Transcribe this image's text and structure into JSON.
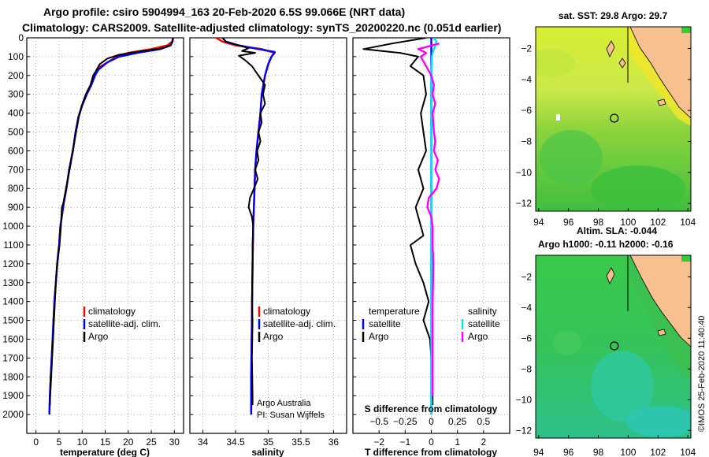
{
  "header": {
    "line1": "Argo profile: csiro 5904994_163 20-Feb-2020 6.5S 99.066E (NRT data)",
    "line2": "Climatology: CARS2009. Satellite-adjusted climatology: synTS_20200220.nc (0.051d earlier)"
  },
  "colors": {
    "climatology": "#ff0000",
    "satellite": "#0000ff",
    "argo": "#000000",
    "sat_salinity": "#00e5e5",
    "argo_salinity": "#ff00ff",
    "land": "#f9c08f"
  },
  "chart_data": [
    {
      "type": "line",
      "id": "temperature",
      "xlabel": "temperature (deg C)",
      "xlim": [
        -2,
        32
      ],
      "xticks": [
        0,
        5,
        10,
        15,
        20,
        25,
        30
      ],
      "ylim": [
        0,
        2100
      ],
      "yticks": [
        0,
        100,
        200,
        300,
        400,
        500,
        600,
        700,
        800,
        900,
        1000,
        1100,
        1200,
        1300,
        1400,
        1500,
        1600,
        1700,
        1800,
        1900,
        2000
      ],
      "legend": [
        "climatology",
        "satellite-adj. clim.",
        "Argo"
      ],
      "series": [
        {
          "name": "climatology",
          "color": "#ff0000",
          "points": [
            [
              29.8,
              0
            ],
            [
              29.5,
              20
            ],
            [
              28.5,
              40
            ],
            [
              25,
              60
            ],
            [
              20,
              80
            ],
            [
              17.5,
              100
            ],
            [
              15.5,
              130
            ],
            [
              13.5,
              160
            ],
            [
              12.8,
              200
            ],
            [
              12,
              250
            ],
            [
              11,
              300
            ],
            [
              10,
              360
            ],
            [
              9.2,
              420
            ],
            [
              8.6,
              500
            ],
            [
              8,
              600
            ],
            [
              7.2,
              700
            ],
            [
              6.6,
              800
            ],
            [
              6,
              880
            ],
            [
              5.3,
              1000
            ],
            [
              5,
              1100
            ],
            [
              4.6,
              1200
            ],
            [
              4.3,
              1300
            ],
            [
              4,
              1400
            ],
            [
              3.8,
              1500
            ],
            [
              3.6,
              1600
            ],
            [
              3.4,
              1700
            ],
            [
              3.2,
              1800
            ],
            [
              3,
              1900
            ],
            [
              2.9,
              2000
            ]
          ]
        },
        {
          "name": "satellite-adj. clim.",
          "color": "#0000ff",
          "points": [
            [
              29.7,
              0
            ],
            [
              29.6,
              20
            ],
            [
              29.2,
              40
            ],
            [
              27,
              60
            ],
            [
              22,
              80
            ],
            [
              18,
              100
            ],
            [
              15.5,
              130
            ],
            [
              13.5,
              170
            ],
            [
              12.8,
              200
            ],
            [
              12,
              250
            ],
            [
              11,
              300
            ],
            [
              10,
              360
            ],
            [
              9.2,
              420
            ],
            [
              8.6,
              500
            ],
            [
              8,
              600
            ],
            [
              7.2,
              700
            ],
            [
              6.6,
              800
            ],
            [
              6,
              880
            ],
            [
              5.3,
              1000
            ],
            [
              5,
              1100
            ],
            [
              4.6,
              1200
            ],
            [
              4.3,
              1300
            ],
            [
              4,
              1400
            ],
            [
              3.8,
              1500
            ],
            [
              3.6,
              1600
            ],
            [
              3.4,
              1700
            ],
            [
              3.2,
              1800
            ],
            [
              3,
              1900
            ],
            [
              2.9,
              2000
            ]
          ]
        },
        {
          "name": "Argo",
          "color": "#000000",
          "points": [
            [
              29.7,
              0
            ],
            [
              29.6,
              20
            ],
            [
              29.2,
              40
            ],
            [
              27.5,
              55
            ],
            [
              23,
              70
            ],
            [
              18,
              90
            ],
            [
              15.5,
              110
            ],
            [
              13.8,
              140
            ],
            [
              12.9,
              180
            ],
            [
              12.4,
              200
            ],
            [
              11.8,
              250
            ],
            [
              10.8,
              300
            ],
            [
              9.9,
              360
            ],
            [
              9.3,
              420
            ],
            [
              8.7,
              500
            ],
            [
              8,
              600
            ],
            [
              7.3,
              700
            ],
            [
              6.5,
              800
            ],
            [
              5.9,
              880
            ],
            [
              5.6,
              900
            ],
            [
              5.4,
              1000
            ],
            [
              5.1,
              1100
            ],
            [
              4.6,
              1200
            ],
            [
              4.3,
              1300
            ],
            [
              4.1,
              1400
            ],
            [
              3.9,
              1500
            ],
            [
              3.7,
              1600
            ],
            [
              3.5,
              1700
            ],
            [
              3.3,
              1800
            ],
            [
              3.1,
              1900
            ],
            [
              3.0,
              1950
            ]
          ]
        }
      ]
    },
    {
      "type": "line",
      "id": "salinity",
      "xlabel": "salinity",
      "xlim": [
        33.8,
        36.2
      ],
      "xticks": [
        34,
        34.5,
        35,
        35.5,
        36
      ],
      "ylim": [
        0,
        2100
      ],
      "legend": [
        "climatology",
        "satellite-adj. clim.",
        "Argo"
      ],
      "series": [
        {
          "name": "climatology",
          "color": "#ff0000",
          "points": [
            [
              34.2,
              0
            ],
            [
              34.3,
              20
            ],
            [
              34.5,
              40
            ],
            [
              34.9,
              60
            ],
            [
              35.1,
              80
            ],
            [
              35.05,
              100
            ],
            [
              35,
              140
            ],
            [
              34.95,
              200
            ],
            [
              34.9,
              300
            ],
            [
              34.88,
              400
            ],
            [
              34.85,
              500
            ],
            [
              34.82,
              600
            ],
            [
              34.8,
              700
            ],
            [
              34.79,
              800
            ],
            [
              34.78,
              900
            ],
            [
              34.77,
              1000
            ],
            [
              34.76,
              1200
            ],
            [
              34.75,
              1500
            ],
            [
              34.74,
              1800
            ],
            [
              34.74,
              2000
            ]
          ]
        },
        {
          "name": "satellite-adj. clim.",
          "color": "#0000ff",
          "points": [
            [
              34.3,
              0
            ],
            [
              34.35,
              20
            ],
            [
              34.55,
              40
            ],
            [
              34.85,
              60
            ],
            [
              35.1,
              75
            ],
            [
              35.05,
              100
            ],
            [
              35,
              140
            ],
            [
              34.95,
              200
            ],
            [
              34.9,
              300
            ],
            [
              34.88,
              400
            ],
            [
              34.85,
              500
            ],
            [
              34.82,
              600
            ],
            [
              34.8,
              700
            ],
            [
              34.79,
              800
            ],
            [
              34.78,
              900
            ],
            [
              34.77,
              1000
            ],
            [
              34.76,
              1200
            ],
            [
              34.75,
              1500
            ],
            [
              34.74,
              1800
            ],
            [
              34.74,
              2000
            ]
          ]
        },
        {
          "name": "Argo",
          "color": "#000000",
          "points": [
            [
              34.3,
              0
            ],
            [
              34.35,
              20
            ],
            [
              34.55,
              40
            ],
            [
              34.7,
              55
            ],
            [
              34.6,
              70
            ],
            [
              34.8,
              80
            ],
            [
              34.55,
              95
            ],
            [
              34.65,
              120
            ],
            [
              34.75,
              150
            ],
            [
              34.85,
              200
            ],
            [
              34.95,
              250
            ],
            [
              34.92,
              300
            ],
            [
              34.95,
              350
            ],
            [
              34.88,
              400
            ],
            [
              34.9,
              450
            ],
            [
              34.85,
              500
            ],
            [
              34.88,
              550
            ],
            [
              34.83,
              600
            ],
            [
              34.85,
              650
            ],
            [
              34.8,
              700
            ],
            [
              34.84,
              750
            ],
            [
              34.78,
              800
            ],
            [
              34.72,
              850
            ],
            [
              34.7,
              900
            ],
            [
              34.75,
              950
            ],
            [
              34.77,
              1000
            ],
            [
              34.76,
              1100
            ],
            [
              34.76,
              1200
            ],
            [
              34.75,
              1400
            ],
            [
              34.76,
              1500
            ],
            [
              34.75,
              1700
            ],
            [
              34.76,
              1900
            ],
            [
              34.76,
              1950
            ]
          ]
        }
      ],
      "notes": [
        "Argo Australia",
        "PI: Susan Wijffels"
      ]
    },
    {
      "type": "line",
      "id": "difference",
      "xlabel": "T difference from climatology",
      "xlabel_top": "S difference from climatology",
      "xlim": [
        -3,
        3
      ],
      "xticks": [
        -2,
        -1,
        0,
        1,
        2
      ],
      "xticks_top": [
        -0.5,
        -0.25,
        0,
        0.25,
        0.5
      ],
      "ylim": [
        0,
        2100
      ],
      "legend_left_title": "temperature",
      "legend_right_title": "salinity",
      "legend_left": [
        "satellite",
        "Argo"
      ],
      "legend_right": [
        "satellite",
        "Argo"
      ],
      "series": [
        {
          "name": "T satellite",
          "color": "#0000ff",
          "points": [
            [
              0,
              0
            ],
            [
              0,
              100
            ],
            [
              0,
              500
            ],
            [
              0,
              1000
            ],
            [
              0,
              1500
            ],
            [
              0,
              2000
            ]
          ]
        },
        {
          "name": "T Argo",
          "color": "#000000",
          "points": [
            [
              -0.2,
              0
            ],
            [
              -1.5,
              30
            ],
            [
              -2.6,
              60
            ],
            [
              -1.2,
              80
            ],
            [
              -0.5,
              100
            ],
            [
              -0.8,
              150
            ],
            [
              -0.3,
              200
            ],
            [
              -0.2,
              300
            ],
            [
              -0.4,
              400
            ],
            [
              -0.3,
              500
            ],
            [
              -0.2,
              600
            ],
            [
              -0.5,
              700
            ],
            [
              -0.3,
              800
            ],
            [
              -0.6,
              900
            ],
            [
              -0.5,
              950
            ],
            [
              -0.4,
              1000
            ],
            [
              -0.3,
              1050
            ],
            [
              -0.8,
              1100
            ],
            [
              -0.6,
              1200
            ],
            [
              -0.3,
              1300
            ],
            [
              -0.1,
              1400
            ],
            [
              -0.3,
              1500
            ],
            [
              -0.05,
              1600
            ],
            [
              0,
              1700
            ],
            [
              0.05,
              1800
            ],
            [
              0.05,
              1900
            ],
            [
              0.05,
              1950
            ]
          ]
        },
        {
          "name": "S satellite",
          "color": "#00e5e5",
          "points": [
            [
              0.1,
              0
            ],
            [
              0.2,
              20
            ],
            [
              0.15,
              40
            ],
            [
              0.05,
              80
            ],
            [
              0.02,
              100
            ],
            [
              0,
              200
            ],
            [
              0,
              500
            ],
            [
              0,
              1000
            ],
            [
              0,
              1500
            ],
            [
              0,
              2000
            ]
          ]
        },
        {
          "name": "S Argo",
          "color": "#ff00ff",
          "points": [
            [
              0.3,
              30
            ],
            [
              -0.5,
              60
            ],
            [
              -0.2,
              80
            ],
            [
              -0.4,
              100
            ],
            [
              -0.2,
              150
            ],
            [
              0,
              200
            ],
            [
              0.1,
              250
            ],
            [
              0.05,
              300
            ],
            [
              0.15,
              350
            ],
            [
              0.05,
              400
            ],
            [
              0.1,
              500
            ],
            [
              0.15,
              550
            ],
            [
              0.1,
              600
            ],
            [
              0.25,
              650
            ],
            [
              0.15,
              700
            ],
            [
              0.3,
              750
            ],
            [
              0.2,
              800
            ],
            [
              -0.1,
              850
            ],
            [
              -0.15,
              900
            ],
            [
              0,
              950
            ],
            [
              0.05,
              1000
            ],
            [
              0.05,
              1100
            ],
            [
              0.08,
              1200
            ],
            [
              0.05,
              1400
            ],
            [
              0.05,
              1600
            ],
            [
              0.05,
              1800
            ],
            [
              0.05,
              1900
            ]
          ]
        }
      ]
    },
    {
      "type": "heatmap",
      "id": "sst-map",
      "title": "sat. SST: 29.8 Argo: 29.7",
      "xticks": [
        94,
        96,
        98,
        100,
        102,
        104
      ],
      "yticks": [
        -2,
        -4,
        -6,
        -8,
        -10,
        -12
      ],
      "xlim": [
        93.8,
        104.2
      ],
      "ylim": [
        -12.5,
        -0.6
      ],
      "argo_position": [
        99.066,
        -6.5
      ]
    },
    {
      "type": "heatmap",
      "id": "sla-map",
      "title": "Altim. SLA: -0.044",
      "subtitle": "Argo h1000: -0.11 h2000: -0.16",
      "xticks": [
        94,
        96,
        98,
        100,
        102,
        104
      ],
      "yticks": [
        -2,
        -4,
        -6,
        -8,
        -10,
        -12
      ],
      "xlim": [
        93.8,
        104.2
      ],
      "ylim": [
        -12.5,
        -0.6
      ],
      "argo_position": [
        99.066,
        -6.5
      ]
    }
  ],
  "credit": "©IMOS 25-Feb-2020 11:40:40"
}
